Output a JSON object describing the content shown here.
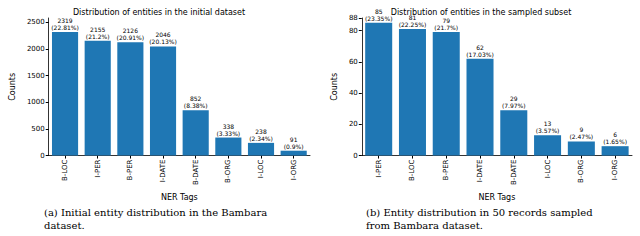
{
  "chart_data": [
    {
      "type": "bar",
      "title": "Distribution of entities in the initial dataset",
      "x_label": "NER Tags",
      "y_label": "Counts",
      "caption": "(a) Initial entity distribution in the Bambara dataset.",
      "categories": [
        "B-LOC",
        "I-PER",
        "B-PER",
        "I-DATE",
        "B-DATE",
        "B-ORG",
        "I-LOC",
        "I-ORG"
      ],
      "values": [
        2319,
        2155,
        2126,
        2046,
        852,
        338,
        238,
        91
      ],
      "value_labels": [
        "2319\n(22.81%)",
        "2155\n(21.2%)",
        "2126\n(20.91%)",
        "2046\n(20.13%)",
        "852\n(8.38%)",
        "338\n(3.33%)",
        "238\n(2.34%)",
        "91\n(0.9%)"
      ],
      "color": "#1f77b4",
      "ylim": [
        0,
        2580
      ],
      "yticks": [
        0,
        500,
        1000,
        1500,
        2000,
        2500
      ],
      "grid": false,
      "data_labels": true
    },
    {
      "type": "bar",
      "title": "Distribution of entities in the sampled subset",
      "x_label": "NER Tags",
      "y_label": "Counts",
      "caption": "(b) Entity distribution in 50 records sampled from Bambara dataset.",
      "categories": [
        "I-PER",
        "B-LOC",
        "B-PER",
        "I-DATE",
        "B-DATE",
        "I-LOC",
        "B-ORG",
        "I-ORG"
      ],
      "values": [
        85,
        81,
        79,
        62,
        29,
        13,
        9,
        6
      ],
      "value_labels": [
        "85\n(23.35%)",
        "81\n(22.25%)",
        "79\n(21.7%)",
        "62\n(17.03%)",
        "29\n(7.97%)",
        "13\n(3.57%)",
        "9\n(2.47%)",
        "6\n(1.65%)"
      ],
      "color": "#1f77b4",
      "ylim": [
        0,
        88
      ],
      "yticks": [
        0,
        20,
        40,
        60,
        80
      ],
      "grid": false,
      "data_labels": true
    }
  ]
}
